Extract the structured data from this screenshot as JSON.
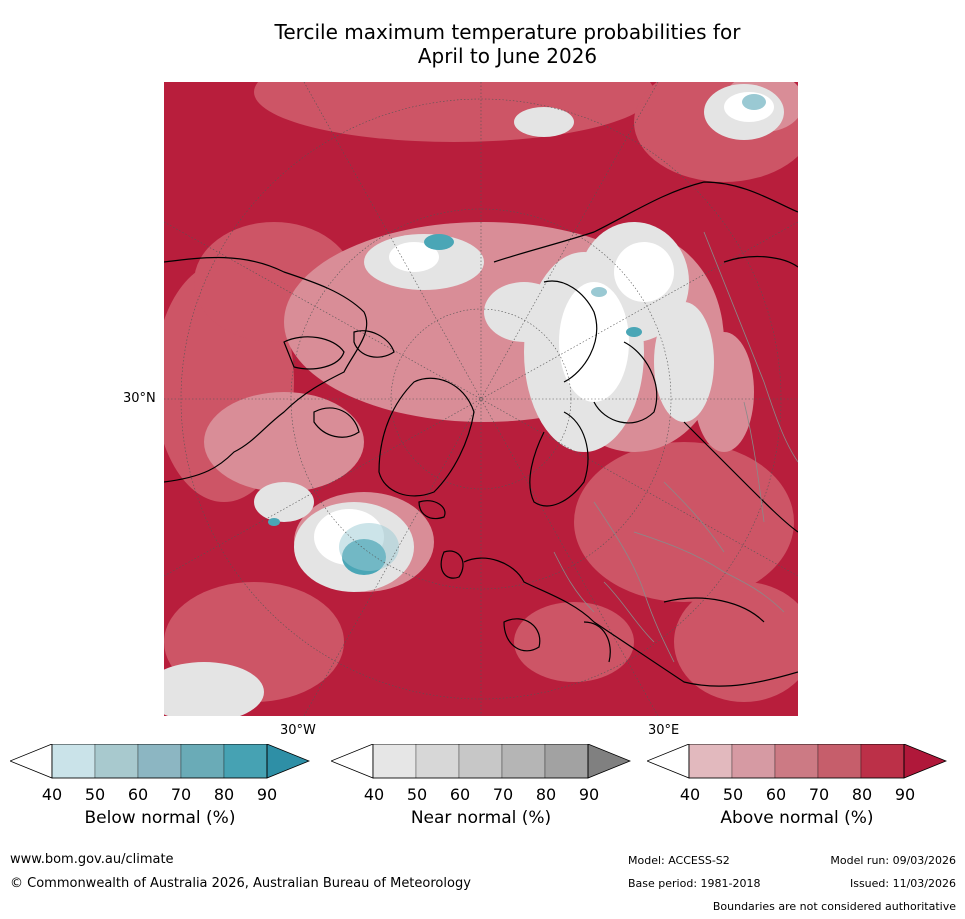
{
  "title": {
    "line1": "Tercile maximum temperature probabilities for",
    "line2": "April to June 2026"
  },
  "map": {
    "projection": "north-polar-stereographic",
    "labels": {
      "lat_30n": "30°N",
      "lon_30w": "30°W",
      "lon_30e": "30°E"
    },
    "colors": {
      "above_dark": "#b81e3c",
      "above_mid": "#cd5566",
      "above_light": "#d98d97",
      "near": "#e4e4e4",
      "below": "#4aa6b6",
      "coast": "#000000",
      "border": "#8a8a8a"
    }
  },
  "colorbars": [
    {
      "label": "Below normal (%)",
      "ticks": [
        "40",
        "50",
        "60",
        "70",
        "80",
        "90"
      ],
      "colors": [
        "#ffffff",
        "#cae3e9",
        "#a8c9ce",
        "#8cb6c2",
        "#6aabb7",
        "#46a2b3",
        "#2e8fa6"
      ]
    },
    {
      "label": "Near normal (%)",
      "ticks": [
        "40",
        "50",
        "60",
        "70",
        "80",
        "90"
      ],
      "colors": [
        "#ffffff",
        "#e6e6e6",
        "#d7d7d7",
        "#c7c7c7",
        "#b5b5b5",
        "#a2a2a2",
        "#808080"
      ]
    },
    {
      "label": "Above normal (%)",
      "ticks": [
        "40",
        "50",
        "60",
        "70",
        "80",
        "90"
      ],
      "colors": [
        "#ffffff",
        "#e2b9be",
        "#d69aa3",
        "#cc7a84",
        "#c65e6b",
        "#bc3048",
        "#b0183a"
      ]
    }
  ],
  "footer": {
    "website": "www.bom.gov.au/climate",
    "copyright": "© Commonwealth of Australia 2026, Australian Bureau of Meteorology",
    "model": "Model: ACCESS-S2",
    "base_period": "Base period: 1981-2018",
    "model_run": "Model run: 09/03/2026",
    "issued": "Issued: 11/03/2026",
    "disclaimer": "Boundaries are not considered authoritative"
  }
}
